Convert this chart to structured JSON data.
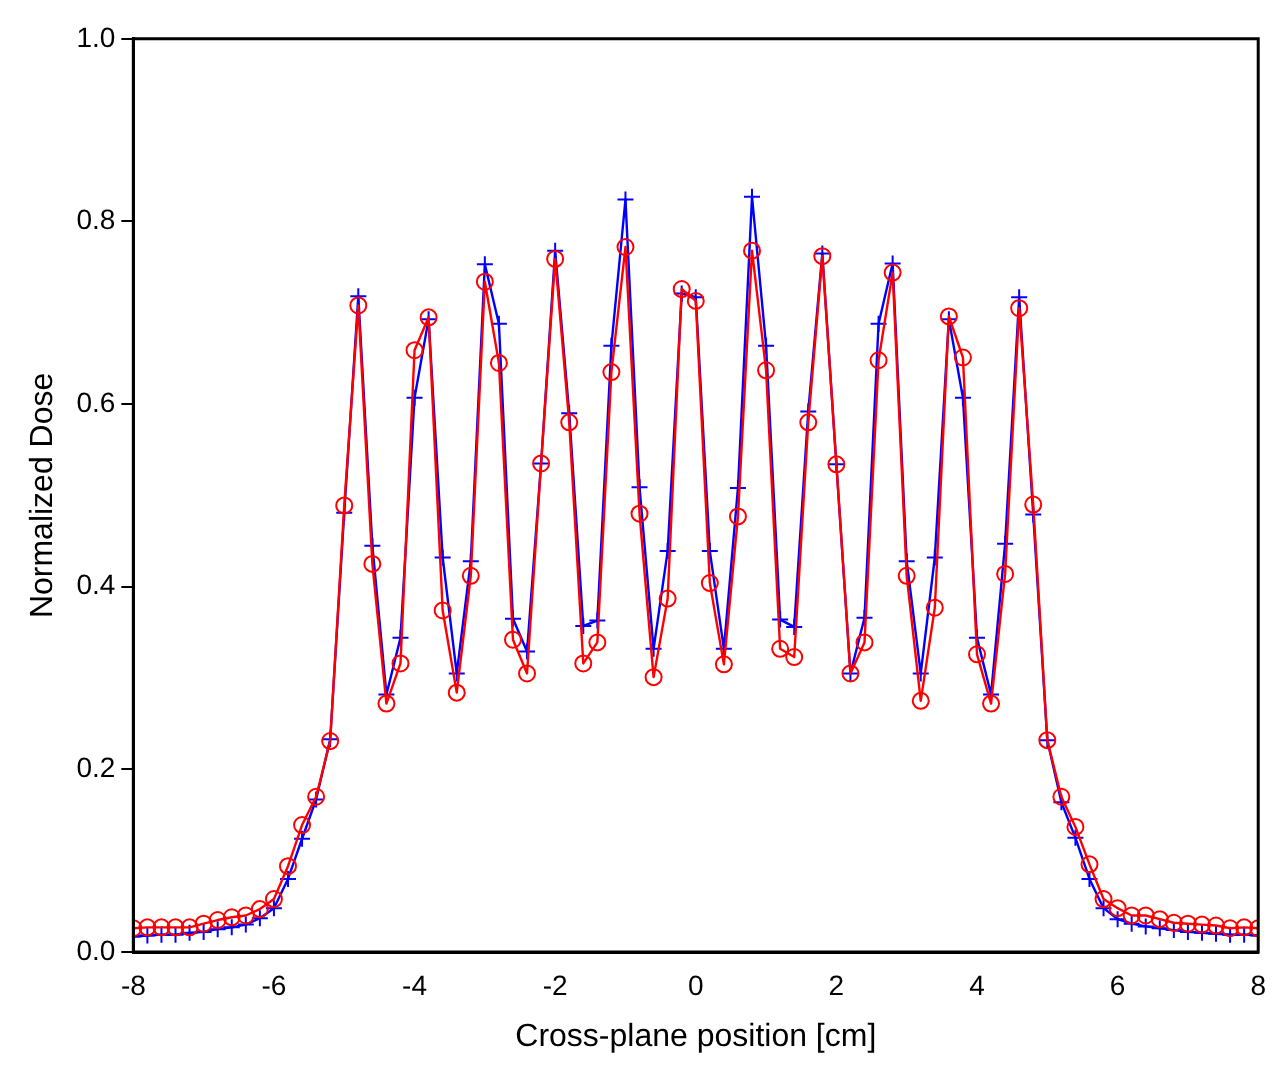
{
  "chart_data": {
    "type": "line",
    "xlabel": "Cross-plane position [cm]",
    "ylabel": "Normalized Dose",
    "x": [
      -8,
      -7.8,
      -7.6,
      -7.4,
      -7.2,
      -7,
      -6.8,
      -6.6,
      -6.4,
      -6.2,
      -6,
      -5.8,
      -5.6,
      -5.4,
      -5.2,
      -5,
      -4.8,
      -4.6,
      -4.4,
      -4.2,
      -4,
      -3.8,
      -3.6,
      -3.4,
      -3.2,
      -3,
      -2.8,
      -2.6,
      -2.4,
      -2.2,
      -2,
      -1.8,
      -1.6,
      -1.4,
      -1.2,
      -1,
      -0.8,
      -0.6,
      -0.4,
      -0.2,
      0,
      0.2,
      0.4,
      0.6,
      0.8,
      1,
      1.2,
      1.4,
      1.6,
      1.8,
      2,
      2.2,
      2.4,
      2.6,
      2.8,
      3,
      3.2,
      3.4,
      3.6,
      3.8,
      4,
      4.2,
      4.4,
      4.6,
      4.8,
      5,
      5.2,
      5.4,
      5.6,
      5.8,
      6,
      6.2,
      6.4,
      6.6,
      6.8,
      7,
      7.2,
      7.4,
      7.6,
      7.8,
      8
    ],
    "series": [
      {
        "color": "#ff0000",
        "marker": "circle",
        "values": [
          0.026,
          0.027,
          0.027,
          0.027,
          0.027,
          0.031,
          0.035,
          0.038,
          0.04,
          0.047,
          0.058,
          0.094,
          0.139,
          0.17,
          0.231,
          0.489,
          0.708,
          0.425,
          0.272,
          0.316,
          0.659,
          0.695,
          0.374,
          0.284,
          0.412,
          0.734,
          0.645,
          0.342,
          0.305,
          0.535,
          0.759,
          0.58,
          0.316,
          0.339,
          0.635,
          0.772,
          0.48,
          0.301,
          0.387,
          0.726,
          0.713,
          0.404,
          0.315,
          0.477,
          0.768,
          0.637,
          0.332,
          0.323,
          0.58,
          0.762,
          0.534,
          0.305,
          0.339,
          0.648,
          0.744,
          0.412,
          0.275,
          0.377,
          0.696,
          0.651,
          0.326,
          0.272,
          0.414,
          0.705,
          0.49,
          0.232,
          0.17,
          0.137,
          0.096,
          0.058,
          0.048,
          0.04,
          0.04,
          0.036,
          0.032,
          0.031,
          0.03,
          0.029,
          0.026,
          0.027,
          0.026
        ]
      },
      {
        "color": "#0000ff",
        "marker": "cross",
        "values": [
          0.017,
          0.018,
          0.019,
          0.019,
          0.021,
          0.022,
          0.025,
          0.027,
          0.03,
          0.037,
          0.048,
          0.08,
          0.124,
          0.167,
          0.233,
          0.481,
          0.718,
          0.445,
          0.282,
          0.344,
          0.607,
          0.693,
          0.432,
          0.305,
          0.428,
          0.753,
          0.688,
          0.365,
          0.329,
          0.535,
          0.768,
          0.59,
          0.357,
          0.363,
          0.664,
          0.824,
          0.509,
          0.332,
          0.439,
          0.721,
          0.717,
          0.439,
          0.332,
          0.508,
          0.827,
          0.664,
          0.364,
          0.356,
          0.592,
          0.765,
          0.534,
          0.305,
          0.366,
          0.688,
          0.754,
          0.428,
          0.305,
          0.432,
          0.693,
          0.607,
          0.344,
          0.282,
          0.447,
          0.717,
          0.479,
          0.232,
          0.164,
          0.125,
          0.08,
          0.048,
          0.036,
          0.031,
          0.028,
          0.026,
          0.024,
          0.022,
          0.021,
          0.02,
          0.019,
          0.019,
          0.018
        ]
      }
    ],
    "xlim": [
      -8,
      8
    ],
    "xticks": [
      -8,
      -6,
      -4,
      -2,
      0,
      2,
      4,
      6,
      8
    ],
    "ylim": [
      0,
      1
    ],
    "yticks": [
      {
        "value": 0,
        "label": "0.0"
      },
      {
        "value": 0.2,
        "label": "0.2"
      },
      {
        "value": 0.4,
        "label": "0.4"
      },
      {
        "value": 0.6,
        "label": "0.6"
      },
      {
        "value": 0.8,
        "label": "0.8"
      },
      {
        "value": 1,
        "label": "1.0"
      }
    ],
    "grid": false,
    "legend": false
  }
}
